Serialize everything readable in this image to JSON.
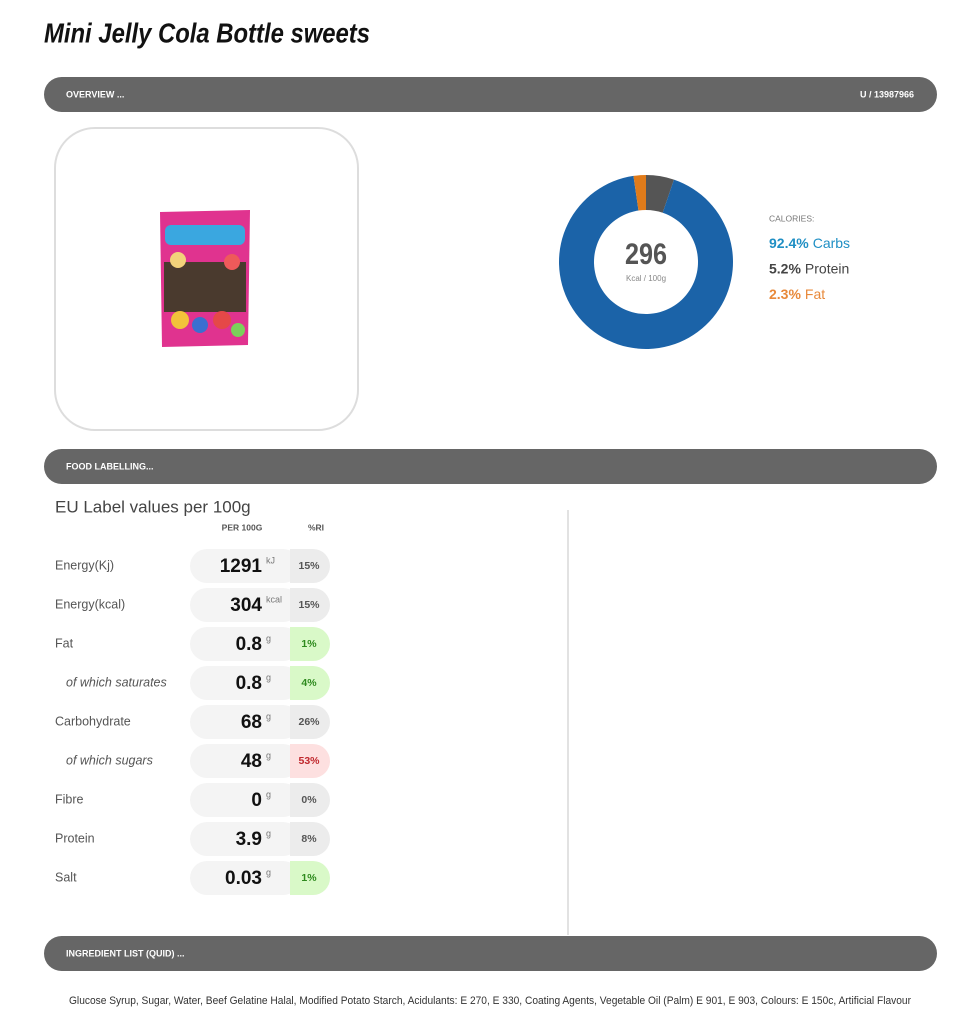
{
  "title": "Mini Jelly Cola Bottle sweets",
  "overview": {
    "label": "OVERVIEW ...",
    "code": "U / 13987966"
  },
  "chart_data": {
    "type": "donut",
    "legend_title": "CALORIES:",
    "center_value": 296,
    "center_label": "Kcal / 100g",
    "categories": [
      "Carbs",
      "Protein",
      "Fat"
    ],
    "values": [
      92.4,
      5.2,
      2.3
    ],
    "value_labels": [
      "92.4%",
      "5.2%",
      "2.3%"
    ],
    "colors": [
      "#1b63a8",
      "#555555",
      "#e07b1a"
    ],
    "label_colors": [
      "#1f8fc4",
      "#444444",
      "#e8893a"
    ]
  },
  "labelling": {
    "label": "FOOD LABELLING...",
    "heading": "EU Label values per 100g",
    "col_value": "PER 100G",
    "col_ri": "%RI",
    "rows": [
      {
        "name": "Energy(Kj)",
        "value": 1291,
        "unit": "kJ",
        "ri": "15%",
        "ri_style": "neutral",
        "sub": false
      },
      {
        "name": "Energy(kcal)",
        "value": 304,
        "unit": "kcal",
        "ri": "15%",
        "ri_style": "neutral",
        "sub": false
      },
      {
        "name": "Fat",
        "value": 0.8,
        "unit": "g",
        "ri": "1%",
        "ri_style": "green",
        "sub": false
      },
      {
        "name": "of which saturates",
        "value": 0.8,
        "unit": "g",
        "ri": "4%",
        "ri_style": "green",
        "sub": true
      },
      {
        "name": "Carbohydrate",
        "value": 68,
        "unit": "g",
        "ri": "26%",
        "ri_style": "neutral",
        "sub": false
      },
      {
        "name": "of which sugars",
        "value": 48,
        "unit": "g",
        "ri": "53%",
        "ri_style": "red",
        "sub": true
      },
      {
        "name": "Fibre",
        "value": 0,
        "unit": "g",
        "ri": "0%",
        "ri_style": "neutral",
        "sub": false
      },
      {
        "name": "Protein",
        "value": 3.9,
        "unit": "g",
        "ri": "8%",
        "ri_style": "neutral",
        "sub": false
      },
      {
        "name": "Salt",
        "value": 0.03,
        "unit": "g",
        "ri": "1%",
        "ri_style": "green",
        "sub": false
      }
    ]
  },
  "ingredients": {
    "label": "INGREDIENT LIST (QUID) ...",
    "text": "Glucose Syrup, Sugar, Water, Beef Gelatine Halal, Modified Potato Starch, Acidulants: E 270, E 330, Coating Agents, Vegetable Oil (Palm) E 901, E 903, Colours: E 150c, Artificial Flavour"
  }
}
